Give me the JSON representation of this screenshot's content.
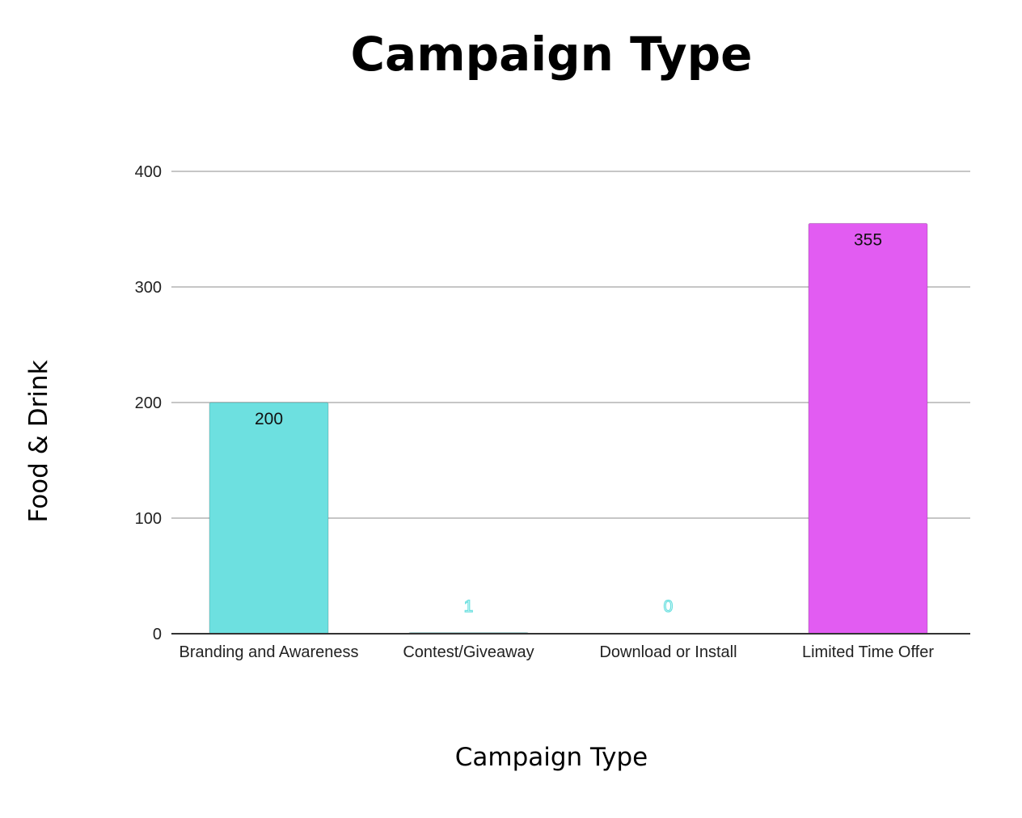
{
  "chart_data": {
    "type": "bar",
    "title": "Campaign Type",
    "xlabel": "Campaign Type",
    "ylabel": "Food & Drink",
    "categories": [
      "Branding and Awareness",
      "Contest/Giveaway",
      "Download or Install",
      "Limited Time Offer"
    ],
    "values": [
      200,
      1,
      0,
      355
    ],
    "data_labels": [
      "200",
      "1",
      "0",
      "355"
    ],
    "bar_colors": [
      "#6de0e0",
      "#6de0e0",
      "#6de0e0",
      "#e25cf2"
    ],
    "yticks": [
      0,
      100,
      200,
      300,
      400
    ],
    "ytick_labels": [
      "0",
      "100",
      "200",
      "300",
      "400"
    ],
    "ylim": [
      0,
      400
    ],
    "grid": true,
    "legend": "none"
  }
}
